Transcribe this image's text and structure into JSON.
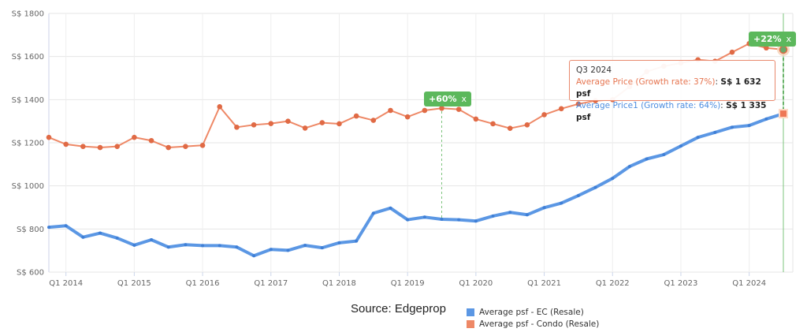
{
  "chart_data": {
    "type": "line",
    "x": [
      "2013Q4",
      "2014Q1",
      "2014Q2",
      "2014Q3",
      "2014Q4",
      "2015Q1",
      "2015Q2",
      "2015Q3",
      "2015Q4",
      "2016Q1",
      "2016Q2",
      "2016Q3",
      "2016Q4",
      "2017Q1",
      "2017Q2",
      "2017Q3",
      "2017Q4",
      "2018Q1",
      "2018Q2",
      "2018Q3",
      "2018Q4",
      "2019Q1",
      "2019Q2",
      "2019Q3",
      "2019Q4",
      "2020Q1",
      "2020Q2",
      "2020Q3",
      "2020Q4",
      "2021Q1",
      "2021Q2",
      "2021Q3",
      "2021Q4",
      "2022Q1",
      "2022Q2",
      "2022Q3",
      "2022Q4",
      "2023Q1",
      "2023Q2",
      "2023Q3",
      "2023Q4",
      "2024Q1",
      "2024Q2",
      "2024Q3"
    ],
    "x_tick_labels": [
      "Q1 2014",
      "Q1 2015",
      "Q1 2016",
      "Q1 2017",
      "Q1 2018",
      "Q1 2019",
      "Q1 2020",
      "Q1 2021",
      "Q1 2022",
      "Q1 2023",
      "Q1 2024"
    ],
    "y_tick_labels": [
      "S$ 600",
      "S$ 800",
      "S$ 1000",
      "S$ 1200",
      "S$ 1400",
      "S$ 1600",
      "S$ 1800"
    ],
    "ylim": [
      600,
      1800
    ],
    "grid": true,
    "series": [
      {
        "name": "Average psf - EC (Resale)",
        "color": "#5b97e4",
        "values": [
          808,
          815,
          762,
          781,
          758,
          725,
          750,
          716,
          727,
          723,
          723,
          716,
          676,
          705,
          701,
          724,
          713,
          736,
          744,
          873,
          897,
          843,
          855,
          845,
          843,
          837,
          860,
          877,
          866,
          899,
          920,
          955,
          993,
          1035,
          1090,
          1125,
          1145,
          1185,
          1225,
          1248,
          1272,
          1280,
          1310,
          1335
        ]
      },
      {
        "name": "Average psf - Condo (Resale)",
        "color": "#ee8866",
        "values": [
          1225,
          1193,
          1183,
          1178,
          1183,
          1225,
          1210,
          1178,
          1183,
          1188,
          1367,
          1272,
          1283,
          1289,
          1300,
          1268,
          1293,
          1288,
          1324,
          1304,
          1350,
          1320,
          1350,
          1360,
          1355,
          1310,
          1288,
          1267,
          1283,
          1330,
          1358,
          1380,
          1395,
          1400,
          1460,
          1530,
          1555,
          1570,
          1585,
          1578,
          1620,
          1660,
          1640,
          1632
        ]
      }
    ],
    "legend": {
      "placement": "bottom-center",
      "items": [
        "Average psf - EC (Resale)",
        "Average psf - Condo (Resale)"
      ]
    },
    "annotations": [
      {
        "text": "+60%",
        "close": "x",
        "at": "2019Q3"
      },
      {
        "text": "+22%",
        "close": "x",
        "at": "2024Q3"
      }
    ],
    "tooltip": {
      "title": "Q3 2024",
      "line1_label": "Average Price (Growth rate: 37%)",
      "line1_value": "S$ 1 632 psf",
      "line2_label": "Average Price1 (Growth rate: 64%)",
      "line2_value": "S$ 1 335 psf"
    },
    "source": "Source: Edgeprop"
  }
}
